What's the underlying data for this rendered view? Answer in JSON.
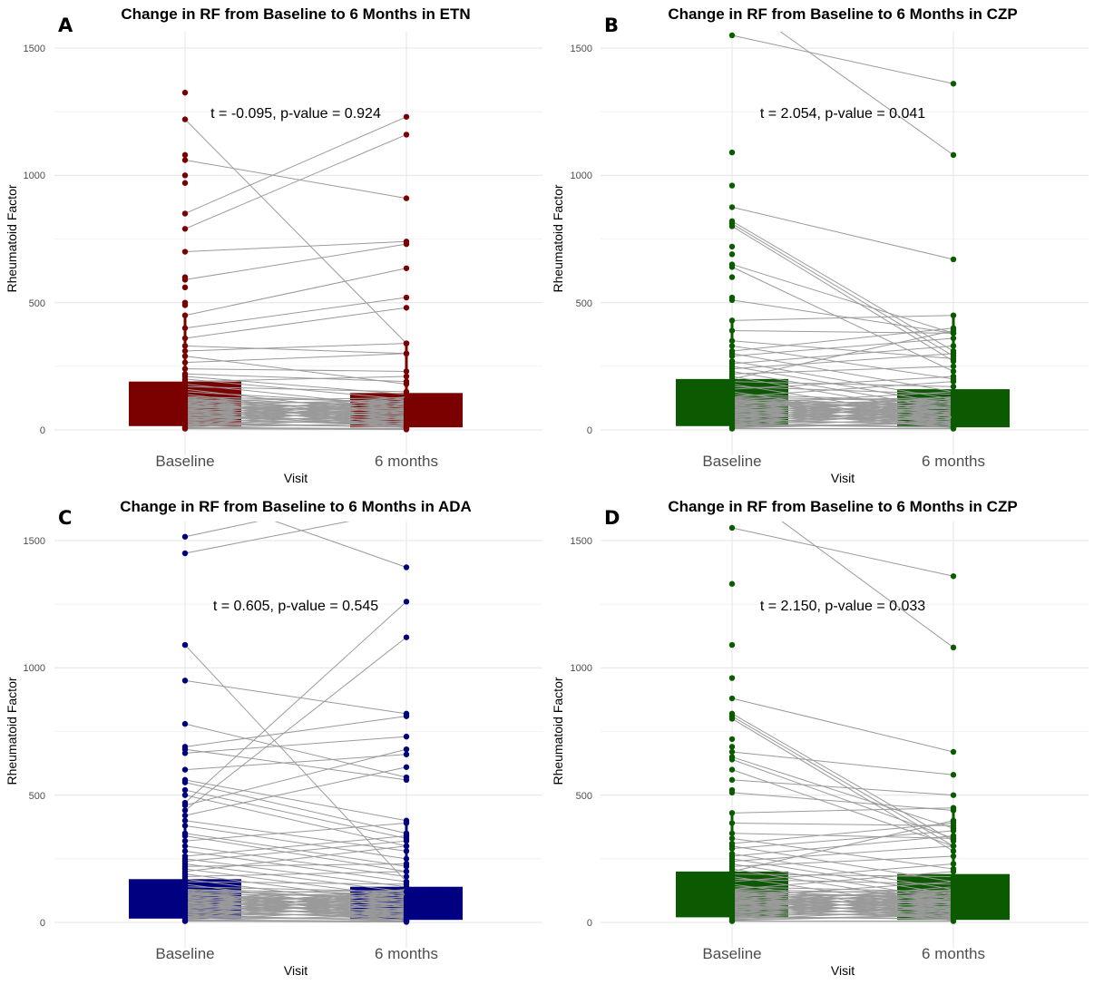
{
  "chart_data": [
    {
      "type": "scatter",
      "panel_tag": "A",
      "title": "Change in RF from Baseline to 6 Months in ETN",
      "xlabel": "Visit",
      "ylabel": "Rheumatoid Factor",
      "categories": [
        "Baseline",
        "6 months"
      ],
      "yticks": [
        0,
        500,
        1000,
        1500
      ],
      "ylim": [
        0,
        1560
      ],
      "grid": true,
      "color": "#7b0000",
      "annotation": "t = -0.095, p-value = 0.924",
      "bars": {
        "Baseline": {
          "low": 15,
          "high": 190
        },
        "6 months": {
          "low": 10,
          "high": 145
        }
      },
      "pairs": [
        [
          1325,
          null
        ],
        [
          1220,
          340
        ],
        [
          1080,
          null
        ],
        [
          1060,
          910
        ],
        [
          1000,
          null
        ],
        [
          970,
          null
        ],
        [
          850,
          1230
        ],
        [
          790,
          1160
        ],
        [
          700,
          740
        ],
        [
          600,
          null
        ],
        [
          590,
          730
        ],
        [
          560,
          null
        ],
        [
          500,
          null
        ],
        [
          490,
          null
        ],
        [
          450,
          635
        ],
        [
          400,
          520
        ],
        [
          360,
          480
        ],
        [
          330,
          300
        ],
        [
          310,
          340
        ],
        [
          290,
          180
        ],
        [
          265,
          300
        ],
        [
          240,
          230
        ],
        [
          220,
          190
        ],
        [
          210,
          140
        ],
        [
          200,
          120
        ],
        [
          190,
          210
        ],
        [
          180,
          90
        ],
        [
          170,
          150
        ],
        [
          160,
          60
        ],
        [
          150,
          100
        ],
        [
          140,
          40
        ],
        [
          130,
          110
        ],
        [
          120,
          70
        ],
        [
          110,
          20
        ],
        [
          100,
          50
        ],
        [
          90,
          80
        ],
        [
          80,
          30
        ],
        [
          70,
          60
        ],
        [
          60,
          15
        ],
        [
          50,
          40
        ],
        [
          40,
          25
        ],
        [
          30,
          10
        ],
        [
          20,
          15
        ],
        [
          10,
          5
        ],
        [
          5,
          2
        ]
      ]
    },
    {
      "type": "scatter",
      "panel_tag": "B",
      "title": "Change in RF from Baseline to 6 Months in CZP",
      "xlabel": "Visit",
      "ylabel": "Rheumatoid Factor",
      "categories": [
        "Baseline",
        "6 months"
      ],
      "yticks": [
        0,
        500,
        1000,
        1500
      ],
      "ylim": [
        0,
        1560
      ],
      "grid": true,
      "color": "#0b5a00",
      "annotation": "t = 2.054, p-value = 0.041",
      "bars": {
        "Baseline": {
          "low": 15,
          "high": 200
        },
        "6 months": {
          "low": 10,
          "high": 160
        }
      },
      "pairs": [
        [
          1550,
          1360
        ],
        [
          1700,
          1080
        ],
        [
          1090,
          null
        ],
        [
          960,
          null
        ],
        [
          875,
          670
        ],
        [
          820,
          310
        ],
        [
          810,
          290
        ],
        [
          800,
          270
        ],
        [
          720,
          null
        ],
        [
          690,
          null
        ],
        [
          650,
          380
        ],
        [
          640,
          230
        ],
        [
          600,
          null
        ],
        [
          520,
          null
        ],
        [
          510,
          380
        ],
        [
          430,
          450
        ],
        [
          390,
          380
        ],
        [
          350,
          280
        ],
        [
          330,
          200
        ],
        [
          310,
          400
        ],
        [
          300,
          150
        ],
        [
          290,
          360
        ],
        [
          270,
          120
        ],
        [
          260,
          330
        ],
        [
          250,
          100
        ],
        [
          240,
          300
        ],
        [
          230,
          80
        ],
        [
          220,
          250
        ],
        [
          210,
          60
        ],
        [
          200,
          390
        ],
        [
          190,
          170
        ],
        [
          180,
          40
        ],
        [
          170,
          140
        ],
        [
          160,
          210
        ],
        [
          150,
          20
        ],
        [
          140,
          110
        ],
        [
          130,
          190
        ],
        [
          120,
          30
        ],
        [
          110,
          90
        ],
        [
          100,
          150
        ],
        [
          90,
          10
        ],
        [
          80,
          70
        ],
        [
          70,
          130
        ],
        [
          60,
          40
        ],
        [
          50,
          90
        ],
        [
          40,
          20
        ],
        [
          30,
          60
        ],
        [
          20,
          10
        ],
        [
          10,
          30
        ],
        [
          5,
          5
        ]
      ]
    },
    {
      "type": "scatter",
      "panel_tag": "C",
      "title": "Change in RF from Baseline to 6 Months in ADA",
      "xlabel": "Visit",
      "ylabel": "Rheumatoid Factor",
      "categories": [
        "Baseline",
        "6 months"
      ],
      "yticks": [
        0,
        500,
        1000,
        1500
      ],
      "ylim": [
        0,
        1575
      ],
      "grid": true,
      "color": "#000080",
      "annotation": "t = 0.605, p-value = 0.545",
      "bars": {
        "Baseline": {
          "low": 15,
          "high": 170
        },
        "6 months": {
          "low": 10,
          "high": 140
        }
      },
      "pairs": [
        [
          1515,
          1700
        ],
        [
          1450,
          1620
        ],
        [
          1700,
          1395
        ],
        [
          1090,
          160
        ],
        [
          950,
          820
        ],
        [
          780,
          570
        ],
        [
          690,
          810
        ],
        [
          680,
          560
        ],
        [
          665,
          730
        ],
        [
          600,
          660
        ],
        [
          560,
          400
        ],
        [
          550,
          350
        ],
        [
          520,
          330
        ],
        [
          500,
          300
        ],
        [
          470,
          1260
        ],
        [
          460,
          680
        ],
        [
          440,
          1120
        ],
        [
          420,
          610
        ],
        [
          400,
          280
        ],
        [
          380,
          250
        ],
        [
          350,
          220
        ],
        [
          340,
          200
        ],
        [
          320,
          390
        ],
        [
          300,
          180
        ],
        [
          280,
          160
        ],
        [
          260,
          340
        ],
        [
          250,
          140
        ],
        [
          240,
          320
        ],
        [
          230,
          120
        ],
        [
          220,
          230
        ],
        [
          210,
          100
        ],
        [
          200,
          300
        ],
        [
          190,
          80
        ],
        [
          180,
          200
        ],
        [
          170,
          60
        ],
        [
          160,
          150
        ],
        [
          150,
          40
        ],
        [
          140,
          120
        ],
        [
          130,
          90
        ],
        [
          120,
          30
        ],
        [
          110,
          70
        ],
        [
          100,
          50
        ],
        [
          90,
          20
        ],
        [
          80,
          40
        ],
        [
          70,
          15
        ],
        [
          60,
          30
        ],
        [
          50,
          10
        ],
        [
          40,
          20
        ],
        [
          30,
          5
        ],
        [
          20,
          10
        ],
        [
          10,
          5
        ],
        [
          5,
          2
        ]
      ]
    },
    {
      "type": "scatter",
      "panel_tag": "D",
      "title": "Change in RF from Baseline to 6 Months in CZP",
      "xlabel": "Visit",
      "ylabel": "Rheumatoid Factor",
      "categories": [
        "Baseline",
        "6 months"
      ],
      "yticks": [
        0,
        500,
        1000,
        1500
      ],
      "ylim": [
        0,
        1575
      ],
      "grid": true,
      "color": "#0b5a00",
      "annotation": "t = 2.150, p-value = 0.033",
      "bars": {
        "Baseline": {
          "low": 20,
          "high": 200
        },
        "6 months": {
          "low": 10,
          "high": 190
        }
      },
      "pairs": [
        [
          1550,
          1360
        ],
        [
          1720,
          1080
        ],
        [
          1330,
          null
        ],
        [
          1090,
          null
        ],
        [
          960,
          null
        ],
        [
          880,
          670
        ],
        [
          820,
          320
        ],
        [
          810,
          300
        ],
        [
          800,
          280
        ],
        [
          720,
          null
        ],
        [
          690,
          null
        ],
        [
          670,
          580
        ],
        [
          650,
          370
        ],
        [
          640,
          330
        ],
        [
          600,
          300
        ],
        [
          560,
          500
        ],
        [
          520,
          null
        ],
        [
          510,
          440
        ],
        [
          430,
          450
        ],
        [
          390,
          380
        ],
        [
          350,
          330
        ],
        [
          330,
          210
        ],
        [
          310,
          390
        ],
        [
          300,
          160
        ],
        [
          290,
          360
        ],
        [
          270,
          130
        ],
        [
          260,
          340
        ],
        [
          250,
          110
        ],
        [
          240,
          300
        ],
        [
          230,
          90
        ],
        [
          220,
          260
        ],
        [
          210,
          70
        ],
        [
          200,
          400
        ],
        [
          190,
          180
        ],
        [
          180,
          50
        ],
        [
          170,
          150
        ],
        [
          160,
          230
        ],
        [
          150,
          30
        ],
        [
          140,
          120
        ],
        [
          130,
          200
        ],
        [
          120,
          40
        ],
        [
          110,
          100
        ],
        [
          100,
          160
        ],
        [
          90,
          20
        ],
        [
          80,
          80
        ],
        [
          70,
          140
        ],
        [
          60,
          50
        ],
        [
          50,
          90
        ],
        [
          40,
          25
        ],
        [
          30,
          60
        ],
        [
          20,
          15
        ],
        [
          10,
          30
        ],
        [
          5,
          5
        ]
      ]
    }
  ]
}
